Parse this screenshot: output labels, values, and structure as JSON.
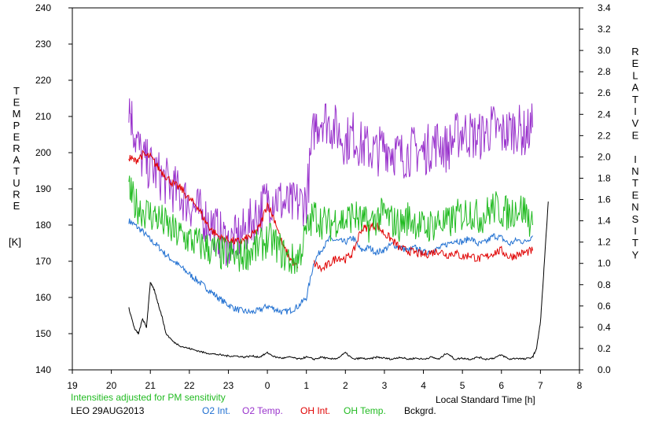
{
  "chart_data": {
    "type": "line",
    "xlabel": "Local Standard Time [h]",
    "x_ticks": [
      "19",
      "20",
      "21",
      "22",
      "23",
      "0",
      "1",
      "2",
      "3",
      "4",
      "5",
      "6",
      "7",
      "8"
    ],
    "xlim": [
      19,
      32
    ],
    "ylabel_left": [
      "T",
      "E",
      "M",
      "P",
      "E",
      "R",
      "A",
      "T",
      "U",
      "R",
      "E"
    ],
    "ylabel_left_unit": "[K]",
    "ylim_left": [
      140,
      240
    ],
    "y_ticks_left": [
      140,
      150,
      160,
      170,
      180,
      190,
      200,
      210,
      220,
      230,
      240
    ],
    "ylabel_right": [
      "R",
      "E",
      "L",
      "A",
      "T",
      "I",
      "V",
      "E",
      "",
      "I",
      "N",
      "T",
      "E",
      "N",
      "S",
      "I",
      "T",
      "Y"
    ],
    "ylim_right": [
      0.0,
      3.4
    ],
    "y_ticks_right": [
      "0.0",
      "0.2",
      "0.4",
      "0.6",
      "0.8",
      "1.0",
      "1.2",
      "1.4",
      "1.6",
      "1.8",
      "2.0",
      "2.2",
      "2.4",
      "2.6",
      "2.8",
      "3.0",
      "3.2",
      "3.4"
    ],
    "grid": false,
    "note": "Intensities adjusted for PM sensitivity",
    "station": "LEO 29AUG2013",
    "series": [
      {
        "name": "O2 Int.",
        "axis": "right",
        "color": "#1f6fd1",
        "x": [
          20.45,
          20.6,
          20.8,
          21.0,
          21.2,
          21.4,
          21.6,
          21.8,
          22.0,
          22.2,
          22.4,
          22.6,
          22.8,
          23.0,
          23.2,
          23.4,
          23.6,
          23.8,
          24.0,
          24.2,
          24.4,
          24.6,
          24.8,
          25.0,
          25.2,
          25.4,
          25.6,
          25.8,
          26.0,
          26.2,
          26.4,
          26.6,
          26.8,
          27.0,
          27.2,
          27.4,
          27.6,
          27.8,
          28.0,
          28.2,
          28.4,
          28.6,
          28.8,
          29.0,
          29.2,
          29.4,
          29.6,
          29.8,
          30.0,
          30.2,
          30.4,
          30.6,
          30.8
        ],
        "y": [
          1.4,
          1.36,
          1.3,
          1.22,
          1.16,
          1.08,
          1.02,
          0.96,
          0.9,
          0.84,
          0.78,
          0.72,
          0.66,
          0.61,
          0.57,
          0.55,
          0.54,
          0.56,
          0.6,
          0.57,
          0.54,
          0.56,
          0.6,
          0.68,
          1.02,
          1.14,
          1.23,
          1.21,
          1.2,
          1.24,
          1.12,
          1.15,
          1.1,
          1.13,
          1.18,
          1.15,
          1.12,
          1.15,
          1.1,
          1.12,
          1.14,
          1.18,
          1.22,
          1.2,
          1.24,
          1.18,
          1.2,
          1.26,
          1.24,
          1.18,
          1.22,
          1.2,
          1.26
        ]
      },
      {
        "name": "O2 Temp.",
        "axis": "left",
        "color": "#9933cc",
        "x": [
          20.45,
          20.6,
          20.8,
          21.0,
          21.2,
          21.4,
          21.6,
          21.8,
          22.0,
          22.2,
          22.4,
          22.6,
          22.8,
          23.0,
          23.2,
          23.4,
          23.6,
          23.8,
          24.0,
          24.2,
          24.4,
          24.6,
          24.8,
          25.0,
          25.2,
          25.4,
          25.6,
          25.8,
          26.0,
          26.2,
          26.4,
          26.6,
          26.8,
          27.0,
          27.2,
          27.4,
          27.6,
          27.8,
          28.0,
          28.2,
          28.4,
          28.6,
          28.8,
          29.0,
          29.2,
          29.4,
          29.6,
          29.8,
          30.0,
          30.2,
          30.4,
          30.6,
          30.8
        ],
        "y": [
          214,
          205,
          198,
          196,
          194,
          192,
          190,
          188,
          186,
          184,
          182,
          180,
          177,
          175,
          176,
          178,
          181,
          184,
          187,
          188,
          186,
          185,
          186,
          187,
          207,
          210,
          208,
          206,
          203,
          205,
          202,
          201,
          200,
          202,
          201,
          199,
          200,
          201,
          200,
          202,
          203,
          201,
          204,
          206,
          205,
          204,
          206,
          207,
          205,
          206,
          207,
          205,
          207
        ]
      },
      {
        "name": "OH Int.",
        "axis": "right",
        "color": "#e00000",
        "x": [
          20.45,
          20.6,
          20.8,
          21.0,
          21.2,
          21.4,
          21.6,
          21.8,
          22.0,
          22.2,
          22.4,
          22.6,
          22.8,
          23.0,
          23.2,
          23.4,
          23.6,
          23.8,
          24.0,
          24.2,
          24.4,
          24.6,
          24.8,
          25.2,
          25.4,
          25.6,
          25.8,
          26.0,
          26.2,
          26.4,
          26.6,
          26.8,
          27.0,
          27.2,
          27.4,
          27.6,
          27.8,
          28.0,
          28.2,
          28.4,
          28.6,
          28.8,
          29.0,
          29.2,
          29.4,
          29.6,
          29.8,
          30.0,
          30.2,
          30.4,
          30.6,
          30.8
        ],
        "y": [
          2.0,
          1.96,
          2.02,
          2.0,
          1.9,
          1.82,
          1.74,
          1.7,
          1.6,
          1.54,
          1.4,
          1.3,
          1.24,
          1.22,
          1.2,
          1.22,
          1.26,
          1.34,
          1.56,
          1.4,
          1.16,
          1.04,
          0.94,
          1.0,
          0.94,
          1.0,
          1.06,
          1.04,
          1.1,
          1.32,
          1.34,
          1.36,
          1.28,
          1.22,
          1.14,
          1.12,
          1.1,
          1.08,
          1.1,
          1.12,
          1.08,
          1.1,
          1.06,
          1.08,
          1.04,
          1.06,
          1.1,
          1.12,
          1.06,
          1.08,
          1.1,
          1.12
        ]
      },
      {
        "name": "OH Temp.",
        "axis": "left",
        "color": "#22bb22",
        "x": [
          20.45,
          20.6,
          20.8,
          21.0,
          21.2,
          21.4,
          21.6,
          21.8,
          22.0,
          22.2,
          22.4,
          22.6,
          22.8,
          23.0,
          23.2,
          23.4,
          23.6,
          23.8,
          24.0,
          24.2,
          24.4,
          24.6,
          24.8,
          25.0,
          25.2,
          25.4,
          25.6,
          25.8,
          26.0,
          26.2,
          26.4,
          26.6,
          26.8,
          27.0,
          27.2,
          27.4,
          27.6,
          27.8,
          28.0,
          28.2,
          28.4,
          28.6,
          28.8,
          29.0,
          29.2,
          29.4,
          29.6,
          29.8,
          30.0,
          30.2,
          30.4,
          30.6,
          30.8
        ],
        "y": [
          190,
          186,
          184,
          183,
          182,
          180,
          178,
          177,
          176,
          175,
          174,
          173,
          172,
          172,
          171,
          172,
          173,
          174,
          176,
          175,
          172,
          170,
          171,
          178,
          183,
          181,
          180,
          182,
          181,
          183,
          181,
          180,
          182,
          183,
          181,
          180,
          182,
          181,
          179,
          180,
          181,
          180,
          182,
          183,
          184,
          182,
          183,
          185,
          184,
          183,
          185,
          184,
          180
        ]
      },
      {
        "name": "Bckgrd.",
        "axis": "right",
        "color": "#000000",
        "x": [
          20.45,
          20.6,
          20.7,
          20.8,
          20.9,
          21.0,
          21.1,
          21.2,
          21.3,
          21.4,
          21.6,
          21.8,
          22.0,
          22.2,
          22.4,
          22.6,
          22.8,
          23.0,
          23.2,
          23.4,
          23.6,
          23.8,
          24.0,
          24.2,
          24.4,
          24.6,
          24.8,
          25.0,
          25.2,
          25.4,
          25.6,
          25.8,
          26.0,
          26.2,
          26.4,
          26.6,
          26.8,
          27.0,
          27.2,
          27.4,
          27.6,
          27.8,
          28.0,
          28.2,
          28.4,
          28.6,
          28.8,
          29.0,
          29.2,
          29.4,
          29.6,
          29.8,
          30.0,
          30.2,
          30.4,
          30.6,
          30.8,
          30.9,
          31.0,
          31.1,
          31.2
        ],
        "y": [
          0.58,
          0.38,
          0.34,
          0.48,
          0.4,
          0.82,
          0.75,
          0.62,
          0.5,
          0.34,
          0.26,
          0.22,
          0.2,
          0.18,
          0.16,
          0.15,
          0.14,
          0.13,
          0.13,
          0.12,
          0.13,
          0.12,
          0.16,
          0.12,
          0.11,
          0.12,
          0.1,
          0.12,
          0.1,
          0.12,
          0.1,
          0.11,
          0.16,
          0.1,
          0.11,
          0.1,
          0.12,
          0.11,
          0.1,
          0.12,
          0.1,
          0.11,
          0.1,
          0.12,
          0.1,
          0.16,
          0.1,
          0.11,
          0.1,
          0.12,
          0.1,
          0.11,
          0.14,
          0.1,
          0.11,
          0.1,
          0.12,
          0.2,
          0.45,
          1.0,
          1.58
        ]
      }
    ]
  }
}
